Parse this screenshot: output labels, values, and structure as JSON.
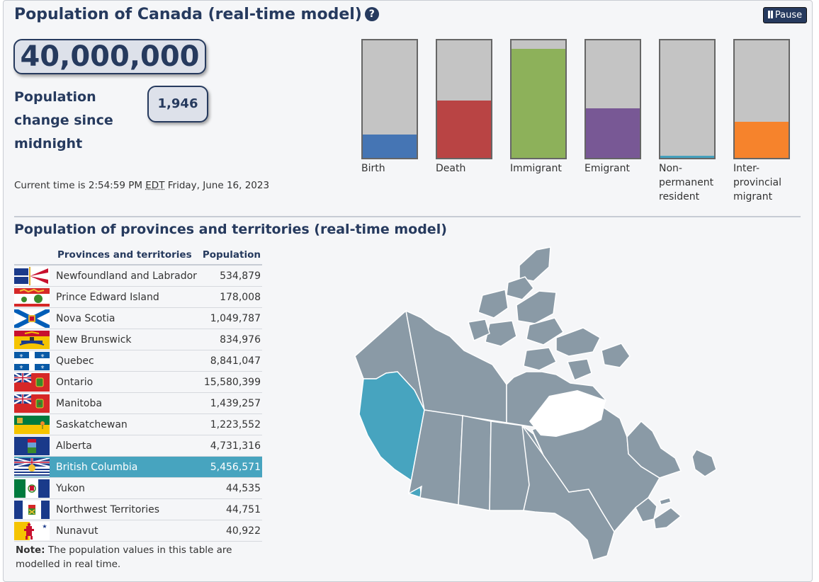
{
  "header": {
    "title": "Population of Canada (real-time model)",
    "help_icon": "question-circle-icon",
    "pause_label": "Pause"
  },
  "counter": {
    "population": "40,000,000",
    "change_label": "Population change since midnight",
    "change_value": "1,946"
  },
  "current_time": {
    "prefix": "Current time is 2:54:59 PM",
    "timezone": "EDT",
    "date": "Friday, June 16, 2023"
  },
  "components": [
    {
      "label": "Birth",
      "fill": 0.2,
      "color": "#4575b4"
    },
    {
      "label": "Death",
      "fill": 0.49,
      "color": "#b94444"
    },
    {
      "label": "Immigrant",
      "fill": 0.93,
      "color": "#8db15a"
    },
    {
      "label": "Emigrant",
      "fill": 0.42,
      "color": "#785895"
    },
    {
      "label": "Non-permanent resident",
      "fill": 0.02,
      "color": "#44a0bd"
    },
    {
      "label": "Inter-provincial migrant",
      "fill": 0.31,
      "color": "#f6832c"
    }
  ],
  "provinces_section": {
    "title": "Population of provinces and territories (real-time model)",
    "col_name": "Provinces and territories",
    "col_pop": "Population",
    "rows": [
      {
        "name": "Newfoundland and Labrador",
        "population": "534,879"
      },
      {
        "name": "Prince Edward Island",
        "population": "178,008"
      },
      {
        "name": "Nova Scotia",
        "population": "1,049,787"
      },
      {
        "name": "New Brunswick",
        "population": "834,976"
      },
      {
        "name": "Quebec",
        "population": "8,841,047"
      },
      {
        "name": "Ontario",
        "population": "15,580,399"
      },
      {
        "name": "Manitoba",
        "population": "1,439,257"
      },
      {
        "name": "Saskatchewan",
        "population": "1,223,552"
      },
      {
        "name": "Alberta",
        "population": "4,731,316"
      },
      {
        "name": "British Columbia",
        "population": "5,456,571"
      },
      {
        "name": "Yukon",
        "population": "44,535"
      },
      {
        "name": "Northwest Territories",
        "population": "44,751"
      },
      {
        "name": "Nunavut",
        "population": "40,922"
      }
    ],
    "note_label": "Note:",
    "note_text": "The population values in this table are modelled in real time."
  },
  "map": {
    "selected_region": "British Columbia",
    "land_color": "#8a9aa6",
    "highlight_color": "#47a4bf"
  }
}
